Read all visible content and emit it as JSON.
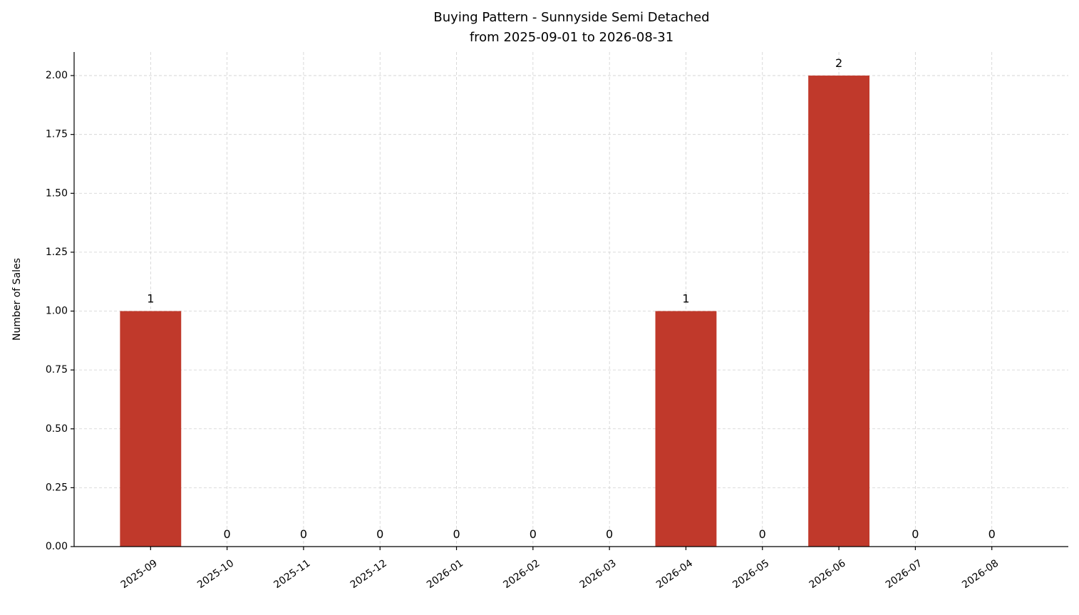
{
  "chart_data": {
    "type": "bar",
    "title": "Buying Pattern - Sunnyside Semi Detached",
    "subtitle": "from 2025-09-01 to 2026-08-31",
    "y_label": "Number of Sales",
    "categories": [
      "2025-09",
      "2025-10",
      "2025-11",
      "2025-12",
      "2026-01",
      "2026-02",
      "2026-03",
      "2026-04",
      "2026-05",
      "2026-06",
      "2026-07",
      "2026-08"
    ],
    "values": [
      1,
      0,
      0,
      0,
      0,
      0,
      0,
      1,
      0,
      2,
      0,
      0
    ],
    "color": "#c0392b",
    "ylim": [
      0,
      2.1
    ],
    "yticks": [
      {
        "value": 0,
        "label": "0.00"
      },
      {
        "value": 0.25,
        "label": "0.25"
      },
      {
        "value": 0.5,
        "label": "0.50"
      },
      {
        "value": 0.75,
        "label": "0.75"
      },
      {
        "value": 1,
        "label": "1.00"
      },
      {
        "value": 1.25,
        "label": "1.25"
      },
      {
        "value": 1.5,
        "label": "1.50"
      },
      {
        "value": 1.75,
        "label": "1.75"
      },
      {
        "value": 2,
        "label": "2.00"
      }
    ],
    "grid": true
  }
}
